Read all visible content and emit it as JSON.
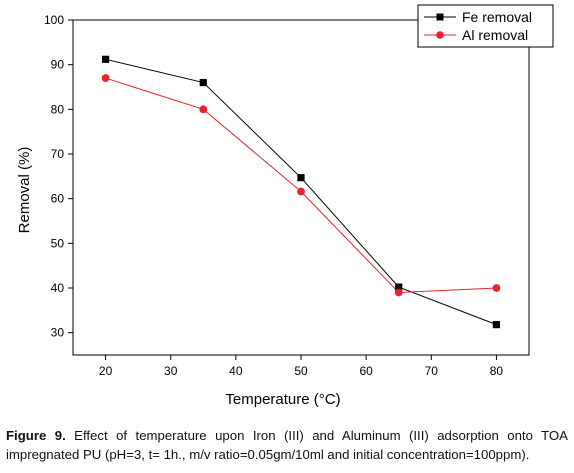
{
  "chart_data": {
    "type": "line",
    "xlabel": "Temperature (°C)",
    "ylabel": "Removal (%)",
    "xlim": [
      15,
      85
    ],
    "ylim": [
      25,
      100
    ],
    "x_ticks": [
      20,
      30,
      40,
      50,
      60,
      70,
      80
    ],
    "y_ticks": [
      30,
      40,
      50,
      60,
      70,
      80,
      90,
      100
    ],
    "grid": false,
    "legend_position": "top-right",
    "series": [
      {
        "name": "Fe removal",
        "marker": "square",
        "color": "#000000",
        "x": [
          20,
          35,
          50,
          65,
          80
        ],
        "y": [
          91.2,
          86.0,
          64.7,
          40.2,
          31.8
        ]
      },
      {
        "name": "Al removal",
        "marker": "circle",
        "color": "#e8232a",
        "x": [
          20,
          35,
          50,
          65,
          80
        ],
        "y": [
          87.0,
          80.0,
          61.6,
          39.0,
          40.0
        ]
      }
    ]
  },
  "caption": {
    "label": "Figure 9.",
    "text": " Effect of temperature upon Iron (III) and Aluminum (III) adsorption onto TOA impregnated PU (pH=3, t= 1h., m/v ratio=0.05gm/10ml and initial concentration=100ppm)."
  }
}
